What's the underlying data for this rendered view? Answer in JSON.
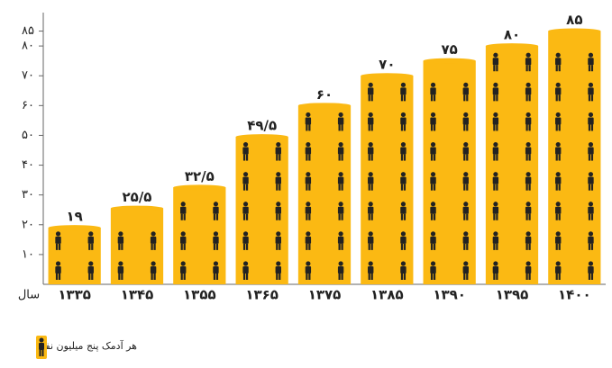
{
  "chart_data": {
    "type": "bar",
    "categories": [
      "۱۳۳۵",
      "۱۳۴۵",
      "۱۳۵۵",
      "۱۳۶۵",
      "۱۳۷۵",
      "۱۳۸۵",
      "۱۳۹۰",
      "۱۳۹۵",
      "۱۴۰۰"
    ],
    "values": [
      19,
      25.5,
      32.5,
      49.5,
      60,
      70,
      75,
      80,
      85
    ],
    "value_labels": [
      "۱۹",
      "۲۵/۵",
      "۳۲/۵",
      "۴۹/۵",
      "۶۰",
      "۷۰",
      "۷۵",
      "۸۰",
      "۸۵"
    ],
    "color": "#fbb913",
    "ylim": [
      0,
      90
    ],
    "yticks": [
      {
        "value": 10,
        "label": "۱۰"
      },
      {
        "value": 20,
        "label": "۲۰"
      },
      {
        "value": 30,
        "label": "۳۰"
      },
      {
        "value": 40,
        "label": "۴۰"
      },
      {
        "value": 50,
        "label": "۵۰"
      },
      {
        "value": 60,
        "label": "۶۰"
      },
      {
        "value": 70,
        "label": "۷۰"
      },
      {
        "value": 80,
        "label": "۸۰"
      },
      {
        "value": 85,
        "label": "۸۵"
      }
    ],
    "x_label": "سال",
    "legend": "هر آدمک پنج میلیون نفر"
  }
}
